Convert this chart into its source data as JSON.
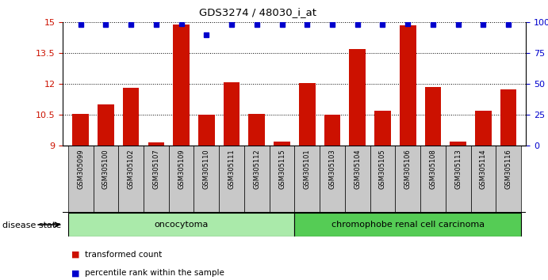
{
  "title": "GDS3274 / 48030_i_at",
  "samples": [
    "GSM305099",
    "GSM305100",
    "GSM305102",
    "GSM305107",
    "GSM305109",
    "GSM305110",
    "GSM305111",
    "GSM305112",
    "GSM305115",
    "GSM305101",
    "GSM305103",
    "GSM305104",
    "GSM305105",
    "GSM305106",
    "GSM305108",
    "GSM305113",
    "GSM305114",
    "GSM305116"
  ],
  "transformed_counts": [
    10.55,
    11.0,
    11.8,
    9.15,
    14.9,
    10.5,
    12.1,
    10.55,
    9.2,
    12.05,
    10.5,
    13.7,
    10.7,
    14.85,
    11.85,
    9.2,
    10.7,
    11.75
  ],
  "percentile_ranks": [
    98,
    98,
    98,
    98,
    99,
    90,
    98,
    98,
    98,
    98,
    98,
    98,
    98,
    99,
    98,
    98,
    98,
    98
  ],
  "ylim_left": [
    9,
    15
  ],
  "ylim_right": [
    0,
    100
  ],
  "yticks_left": [
    9,
    10.5,
    12,
    13.5,
    15
  ],
  "yticks_right": [
    0,
    25,
    50,
    75,
    100
  ],
  "groups": [
    {
      "label": "oncocytoma",
      "start": 0,
      "end": 9,
      "color": "#AAEAAA"
    },
    {
      "label": "chromophobe renal cell carcinoma",
      "start": 9,
      "end": 18,
      "color": "#55CC55"
    }
  ],
  "bar_color": "#CC1100",
  "dot_color": "#0000CC",
  "background_color": "#FFFFFF",
  "tick_label_color_left": "#CC1100",
  "tick_label_color_right": "#0000CC",
  "xtick_bg_color": "#C8C8C8",
  "legend_items": [
    {
      "label": "transformed count",
      "color": "#CC1100"
    },
    {
      "label": "percentile rank within the sample",
      "color": "#0000CC"
    }
  ],
  "disease_state_label": "disease state",
  "bar_width": 0.65
}
